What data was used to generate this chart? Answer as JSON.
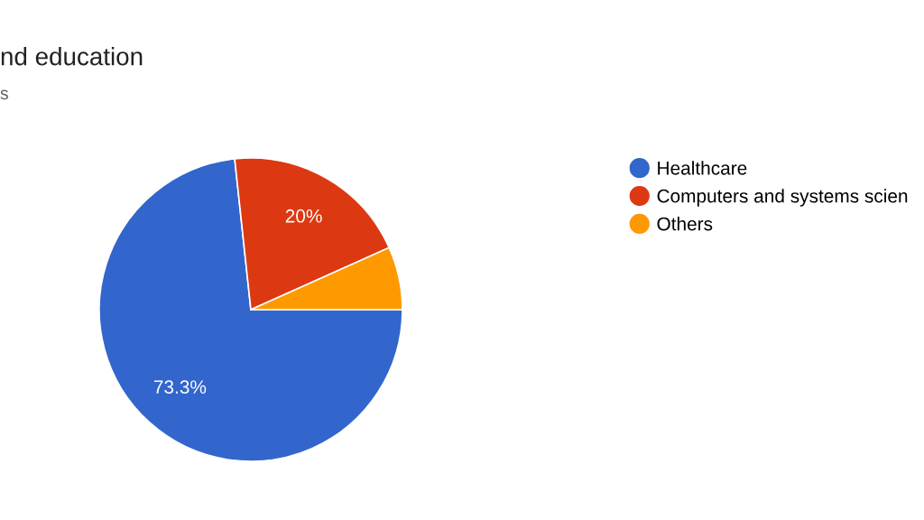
{
  "chart_data": {
    "type": "pie",
    "title": "nd education",
    "subtitle": "s",
    "categories": [
      "Healthcare",
      "Computers and systems scien",
      "Others"
    ],
    "values": [
      73.3,
      20,
      6.7
    ],
    "colors": [
      "#3366cc",
      "#dc3912",
      "#ff9900"
    ],
    "value_labels": [
      "73.3%",
      "20%",
      null
    ],
    "legend": "right"
  }
}
